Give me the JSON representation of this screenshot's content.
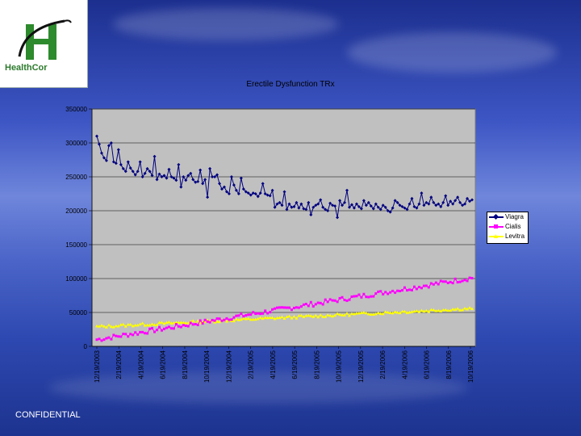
{
  "footer_text": "CONFIDENTIAL",
  "logo": {
    "text": "HealthCor"
  },
  "chart_data": {
    "type": "line",
    "title": "Erectile Dysfunction TRx",
    "xlabel": "",
    "ylabel": "",
    "ylim": [
      0,
      350000
    ],
    "yticks": [
      0,
      50000,
      100000,
      150000,
      200000,
      250000,
      300000,
      350000
    ],
    "x_tick_labels": [
      "12/19/2003",
      "2/19/2004",
      "4/19/2004",
      "6/19/2004",
      "8/19/2004",
      "10/19/2004",
      "12/19/2004",
      "2/19/2005",
      "4/19/2005",
      "6/19/2005",
      "8/19/2005",
      "10/19/2005",
      "12/19/2005",
      "2/19/2006",
      "4/19/2006",
      "6/19/2006",
      "8/19/2006",
      "10/19/2006"
    ],
    "x_label_note": "weekly",
    "legend_position": "right",
    "grid": true,
    "series": [
      {
        "name": "Viagra",
        "color": "#000080",
        "marker": "diamond",
        "values": [
          310000,
          298000,
          285000,
          278000,
          274000,
          296000,
          300000,
          272000,
          270000,
          290000,
          268000,
          262000,
          258000,
          272000,
          263000,
          258000,
          253000,
          258000,
          272000,
          250000,
          255000,
          262000,
          258000,
          252000,
          280000,
          246000,
          254000,
          250000,
          252000,
          248000,
          261000,
          250000,
          248000,
          245000,
          268000,
          235000,
          250000,
          245000,
          252000,
          255000,
          246000,
          242000,
          243000,
          260000,
          240000,
          246000,
          220000,
          262000,
          250000,
          250000,
          253000,
          240000,
          232000,
          235000,
          228000,
          225000,
          250000,
          238000,
          230000,
          225000,
          248000,
          232000,
          228000,
          226000,
          223000,
          226000,
          225000,
          221000,
          226000,
          240000,
          225000,
          223000,
          222000,
          230000,
          205000,
          210000,
          212000,
          208000,
          228000,
          202000,
          210000,
          205000,
          206000,
          212000,
          204000,
          210000,
          203000,
          202000,
          212000,
          194000,
          205000,
          208000,
          210000,
          216000,
          205000,
          202000,
          200000,
          211000,
          208000,
          207000,
          190000,
          215000,
          208000,
          212000,
          230000,
          205000,
          209000,
          204000,
          210000,
          206000,
          203000,
          215000,
          208000,
          212000,
          207000,
          203000,
          210000,
          205000,
          202000,
          208000,
          205000,
          200000,
          198000,
          204000,
          215000,
          212000,
          208000,
          206000,
          204000,
          202000,
          210000,
          218000,
          206000,
          204000,
          210000,
          226000,
          208000,
          212000,
          210000,
          220000,
          212000,
          208000,
          210000,
          206000,
          212000,
          222000,
          208000,
          214000,
          210000,
          215000,
          220000,
          212000,
          208000,
          210000,
          218000,
          214000,
          216000
        ],
        "values_note": ""
      },
      {
        "name": "Cialis",
        "color": "#ff00ff",
        "marker": "square",
        "start": 10000,
        "end": 101000
      },
      {
        "name": "Levitra",
        "color": "#ffff00",
        "marker": "triangle",
        "start": 29000,
        "end": 56000
      }
    ]
  }
}
